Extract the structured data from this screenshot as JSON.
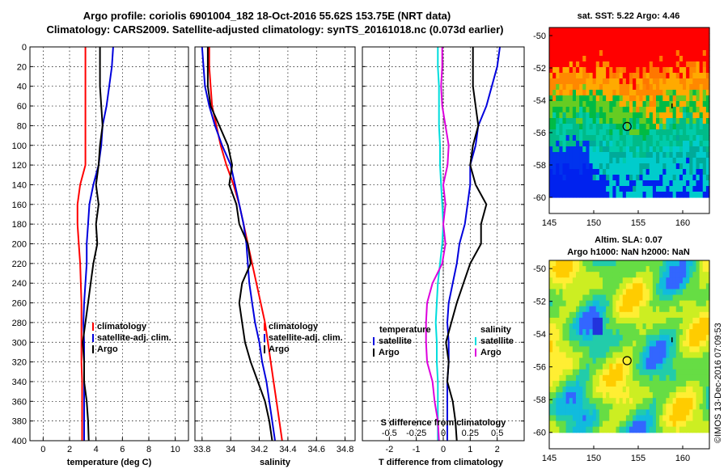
{
  "title_line1": "Argo profile: coriolis 6901004_182 18-Oct-2016 55.62S 153.75E (NRT data)",
  "title_line2": "Climatology: CARS2009. Satellite-adjusted climatology: synTS_20161018.nc (0.073d earlier)",
  "watermark": "©IMOS 13-Dec-2016 07:09:53",
  "colors": {
    "climatology": "#ff0000",
    "satellite": "#0000dd",
    "argo": "#000000",
    "sal_sat": "#00dddd",
    "sal_argo": "#dd00dd"
  },
  "chart_data": [
    {
      "type": "line",
      "id": "temperature",
      "xlabel": "temperature (deg C)",
      "xlim": [
        -1,
        11
      ],
      "xticks": [
        "0",
        "2",
        "4",
        "6",
        "8",
        "10"
      ],
      "ylim": [
        0,
        400
      ],
      "yticks": [
        "0",
        "20",
        "40",
        "60",
        "80",
        "100",
        "120",
        "140",
        "160",
        "180",
        "200",
        "220",
        "240",
        "260",
        "280",
        "300",
        "320",
        "340",
        "360",
        "380",
        "400"
      ],
      "legend": [
        "climatology",
        "satellite-adj. clim.",
        "Argo"
      ],
      "depth": [
        0,
        20,
        40,
        60,
        80,
        100,
        120,
        140,
        160,
        180,
        200,
        220,
        240,
        260,
        280,
        300,
        320,
        340,
        360,
        380,
        400
      ],
      "series": [
        {
          "name": "climatology",
          "color": "#ff0000",
          "values": [
            3.2,
            3.2,
            3.2,
            3.2,
            3.2,
            3.2,
            3.2,
            2.8,
            2.6,
            2.6,
            2.7,
            2.8,
            2.85,
            2.9,
            2.9,
            2.9,
            2.9,
            2.95,
            2.95,
            2.95,
            2.95
          ]
        },
        {
          "name": "satellite-adj. clim.",
          "color": "#0000dd",
          "values": [
            5.3,
            5.2,
            5.0,
            4.8,
            4.5,
            4.4,
            4.2,
            3.8,
            3.5,
            3.4,
            3.3,
            3.3,
            3.2,
            3.1,
            3.05,
            3.1,
            3.1,
            3.1,
            3.1,
            3.1,
            3.1
          ]
        },
        {
          "name": "Argo",
          "color": "#000000",
          "values": [
            4.3,
            4.3,
            4.3,
            4.4,
            4.5,
            4.3,
            4.2,
            4.0,
            4.2,
            4.0,
            4.1,
            3.8,
            3.6,
            3.4,
            3.2,
            3.0,
            3.1,
            3.1,
            3.3,
            3.4,
            3.45
          ]
        }
      ]
    },
    {
      "type": "line",
      "id": "salinity",
      "xlabel": "salinity",
      "xlim": [
        33.75,
        34.87
      ],
      "xticks": [
        "33.8",
        "34",
        "34.2",
        "34.4",
        "34.6",
        "34.8"
      ],
      "ylim": [
        0,
        400
      ],
      "legend": [
        "climatology",
        "satellite-adj. clim.",
        "Argo"
      ],
      "depth": [
        0,
        20,
        40,
        60,
        80,
        100,
        120,
        140,
        160,
        180,
        200,
        220,
        240,
        260,
        280,
        300,
        320,
        340,
        360,
        380,
        400
      ],
      "series": [
        {
          "name": "climatology",
          "color": "#ff0000",
          "values": [
            33.85,
            33.85,
            33.86,
            33.87,
            33.9,
            33.93,
            33.97,
            34.02,
            34.06,
            34.09,
            34.12,
            34.15,
            34.18,
            34.21,
            34.24,
            34.26,
            34.28,
            34.3,
            34.32,
            34.34,
            34.36
          ]
        },
        {
          "name": "satellite-adj. clim.",
          "color": "#0000dd",
          "values": [
            33.8,
            33.81,
            33.82,
            33.85,
            33.89,
            33.94,
            34.0,
            34.03,
            34.06,
            34.09,
            34.11,
            34.12,
            34.13,
            34.15,
            34.17,
            34.2,
            34.22,
            34.25,
            34.27,
            34.29,
            34.31
          ]
        },
        {
          "name": "Argo",
          "color": "#000000",
          "values": [
            33.84,
            33.84,
            33.84,
            33.86,
            33.92,
            33.98,
            34.01,
            33.99,
            34.04,
            34.06,
            34.12,
            34.14,
            34.08,
            34.06,
            34.08,
            34.1,
            34.14,
            34.19,
            34.24,
            34.27,
            34.29
          ]
        }
      ]
    },
    {
      "type": "line",
      "id": "differences",
      "xlabel": "T difference from climatology",
      "top_xlabel": "S difference from climatology",
      "xlim": [
        -3,
        3
      ],
      "xticks": [
        "-2",
        "-1",
        "0",
        "1",
        "2"
      ],
      "top_xticks": [
        "-0.5",
        "-0.25",
        "0",
        "0.25",
        "0.5"
      ],
      "ylim": [
        0,
        400
      ],
      "legend_left_title": "temperature",
      "legend_right_title": "salinity",
      "legend_left": [
        "satellite",
        "Argo"
      ],
      "legend_right": [
        "satellite",
        "Argo"
      ],
      "depth": [
        0,
        20,
        40,
        60,
        80,
        100,
        120,
        140,
        160,
        180,
        200,
        220,
        240,
        260,
        280,
        300,
        320,
        340,
        360,
        380,
        400
      ],
      "series": [
        {
          "name": "T satellite",
          "color": "#0000dd",
          "values": [
            2.1,
            2.0,
            1.8,
            1.6,
            1.3,
            1.2,
            1.0,
            1.0,
            0.9,
            0.8,
            0.6,
            0.5,
            0.35,
            0.2,
            0.15,
            0.2,
            0.2,
            0.15,
            0.15,
            0.15,
            0.15
          ]
        },
        {
          "name": "T Argo",
          "color": "#000000",
          "values": [
            1.1,
            1.1,
            1.1,
            1.2,
            1.3,
            1.1,
            1.0,
            1.2,
            1.6,
            1.4,
            1.4,
            1.0,
            0.75,
            0.5,
            0.3,
            0.1,
            0.2,
            0.15,
            0.35,
            0.45,
            0.5
          ]
        },
        {
          "name": "S satellite",
          "color": "#00dddd",
          "values": [
            -0.05,
            -0.05,
            -0.04,
            -0.04,
            -0.04,
            -0.03,
            -0.03,
            -0.02,
            -0.01,
            0.0,
            -0.01,
            -0.03,
            -0.05,
            -0.06,
            -0.07,
            -0.06,
            -0.06,
            -0.05,
            -0.05,
            -0.05,
            -0.05
          ]
        },
        {
          "name": "S Argo",
          "color": "#dd00dd",
          "values": [
            -0.01,
            -0.01,
            -0.02,
            -0.01,
            0.02,
            0.05,
            0.04,
            0.0,
            0.02,
            0.0,
            0.02,
            -0.01,
            -0.1,
            -0.15,
            -0.16,
            -0.16,
            -0.15,
            -0.1,
            -0.08,
            -0.05,
            -0.04
          ]
        }
      ]
    },
    {
      "type": "heatmap",
      "id": "sst_map",
      "title": "sat. SST: 5.22 Argo: 4.46",
      "xlim": [
        145,
        163
      ],
      "ylim": [
        -61,
        -49.5
      ],
      "xticks": [
        "145",
        "150",
        "155",
        "160"
      ],
      "yticks": [
        "-50",
        "-52",
        "-54",
        "-56",
        "-58",
        "-60"
      ],
      "argo_position": [
        153.75,
        -55.62
      ]
    },
    {
      "type": "heatmap",
      "id": "sla_map",
      "title_line1": "Altim. SLA: 0.07",
      "title_line2": "Argo h1000: NaN h2000: NaN",
      "xlim": [
        145,
        163
      ],
      "ylim": [
        -61,
        -49.5
      ],
      "xticks": [
        "145",
        "150",
        "155",
        "160"
      ],
      "yticks": [
        "-50",
        "-52",
        "-54",
        "-56",
        "-58",
        "-60"
      ],
      "argo_position": [
        153.75,
        -55.62
      ]
    }
  ]
}
